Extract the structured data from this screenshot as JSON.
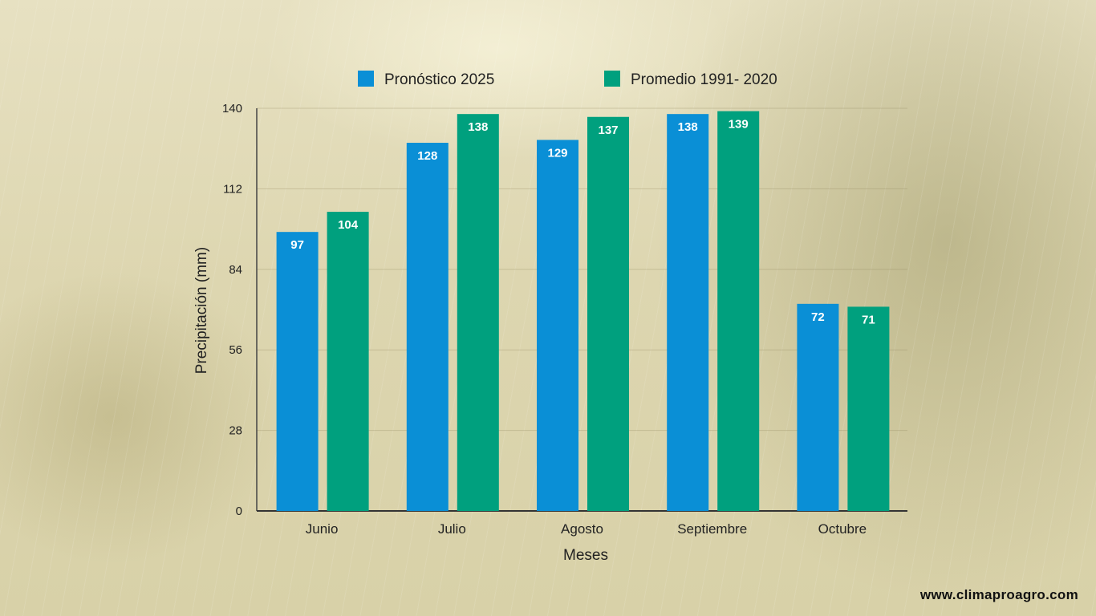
{
  "chart_data": {
    "type": "bar",
    "categories": [
      "Junio",
      "Julio",
      "Agosto",
      "Septiembre",
      "Octubre"
    ],
    "series": [
      {
        "name": "Pronóstico 2025",
        "color": "#0a8fd6",
        "values": [
          97,
          128,
          129,
          138,
          72
        ]
      },
      {
        "name": "Promedio 1991- 2020",
        "color": "#00a07e",
        "values": [
          104,
          138,
          137,
          139,
          71
        ]
      }
    ],
    "xlabel": "Meses",
    "ylabel": "Precipitación (mm)",
    "ylim": [
      0,
      140
    ],
    "yticks": [
      0,
      28,
      56,
      84,
      112,
      140
    ],
    "grid": true,
    "legend_position": "top"
  },
  "footer": {
    "website": "www.climaproagro.com"
  }
}
